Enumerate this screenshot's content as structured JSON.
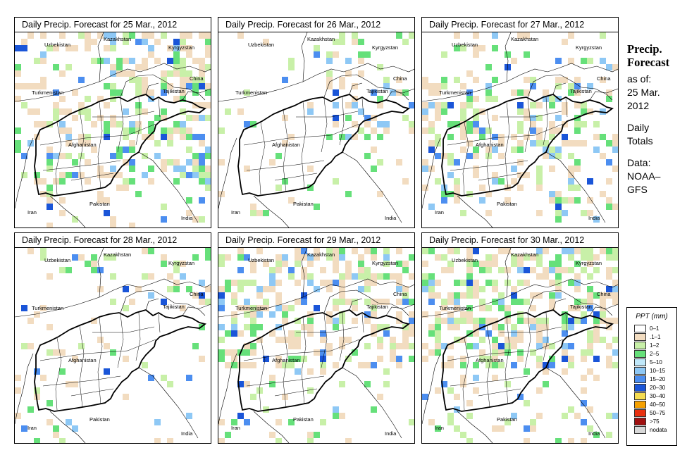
{
  "panels": [
    {
      "title": "Daily Precip. Forecast for  25 Mar., 2012",
      "density": 0.65,
      "bias": "east"
    },
    {
      "title": "Daily Precip. Forecast for  26 Mar., 2012",
      "density": 0.35,
      "bias": "northeast"
    },
    {
      "title": "Daily Precip. Forecast for  27 Mar., 2012",
      "density": 0.6,
      "bias": "center"
    },
    {
      "title": "Daily Precip. Forecast for  28 Mar., 2012",
      "density": 0.3,
      "bias": "west"
    },
    {
      "title": "Daily Precip. Forecast for  29 Mar., 2012",
      "density": 0.7,
      "bias": "north"
    },
    {
      "title": "Daily Precip. Forecast for  30 Mar., 2012",
      "density": 0.75,
      "bias": "north"
    }
  ],
  "map_labels": {
    "uzbekistan": "Uzbekistan",
    "kazakhstan": "Kazakhstan",
    "kyrgyzstan": "Kyrgyzstan",
    "china": "China",
    "turkmenistan": "Turkmenistan",
    "tajikistan": "Tajikistan",
    "afghanistan": "Afghanistan",
    "pakistan": "Pakistan",
    "iran": "Iran",
    "india": "India"
  },
  "info": {
    "heading_line1": "Precip.",
    "heading_line2": "Forecast",
    "as_of_label": "as of:",
    "date_line1": "25 Mar.",
    "date_line2": "2012",
    "totals_line1": "Daily",
    "totals_line2": "Totals",
    "data_line1": "Data:",
    "data_line2": "NOAA–",
    "data_line3": "GFS"
  },
  "legend": {
    "title": "PPT (mm)",
    "items": [
      {
        "label": "0–1",
        "color": "#ffffff"
      },
      {
        "label": ".1–1",
        "color": "#f2dcc0"
      },
      {
        "label": "1–2",
        "color": "#c8f0a8"
      },
      {
        "label": "2–5",
        "color": "#66e07a"
      },
      {
        "label": "5–10",
        "color": "#c0e8fa"
      },
      {
        "label": "10–15",
        "color": "#8ec8f5"
      },
      {
        "label": "15–20",
        "color": "#4c8ef0"
      },
      {
        "label": "20–30",
        "color": "#1a55d8"
      },
      {
        "label": "30–40",
        "color": "#f5dc50"
      },
      {
        "label": "40–50",
        "color": "#f5a000"
      },
      {
        "label": "50–75",
        "color": "#e83010"
      },
      {
        "label": ">75",
        "color": "#a01010"
      },
      {
        "label": "nodata",
        "color": "#d8d8d8"
      }
    ]
  }
}
